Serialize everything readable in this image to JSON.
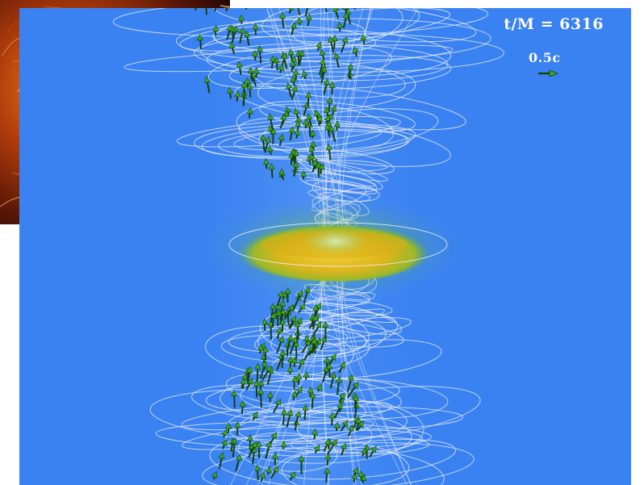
{
  "overlay": {
    "time_readout": "t/M = 6316",
    "velocity_scale_label": "0.5c"
  },
  "colors": {
    "background_blue": "#3a82f2",
    "field_line_white": "#e8ecf8",
    "vector_green": "#3aa820",
    "vector_dark": "#173f0c",
    "disk_yellow": "#e3bd1c",
    "disk_green": "#66b22a",
    "backdrop_dark": "#2a0c04",
    "backdrop_orange": "#e0701a"
  },
  "icons": {
    "scale_arrow": "green-velocity-arrow-icon",
    "vectors": "green-velocity-arrow-icon"
  }
}
